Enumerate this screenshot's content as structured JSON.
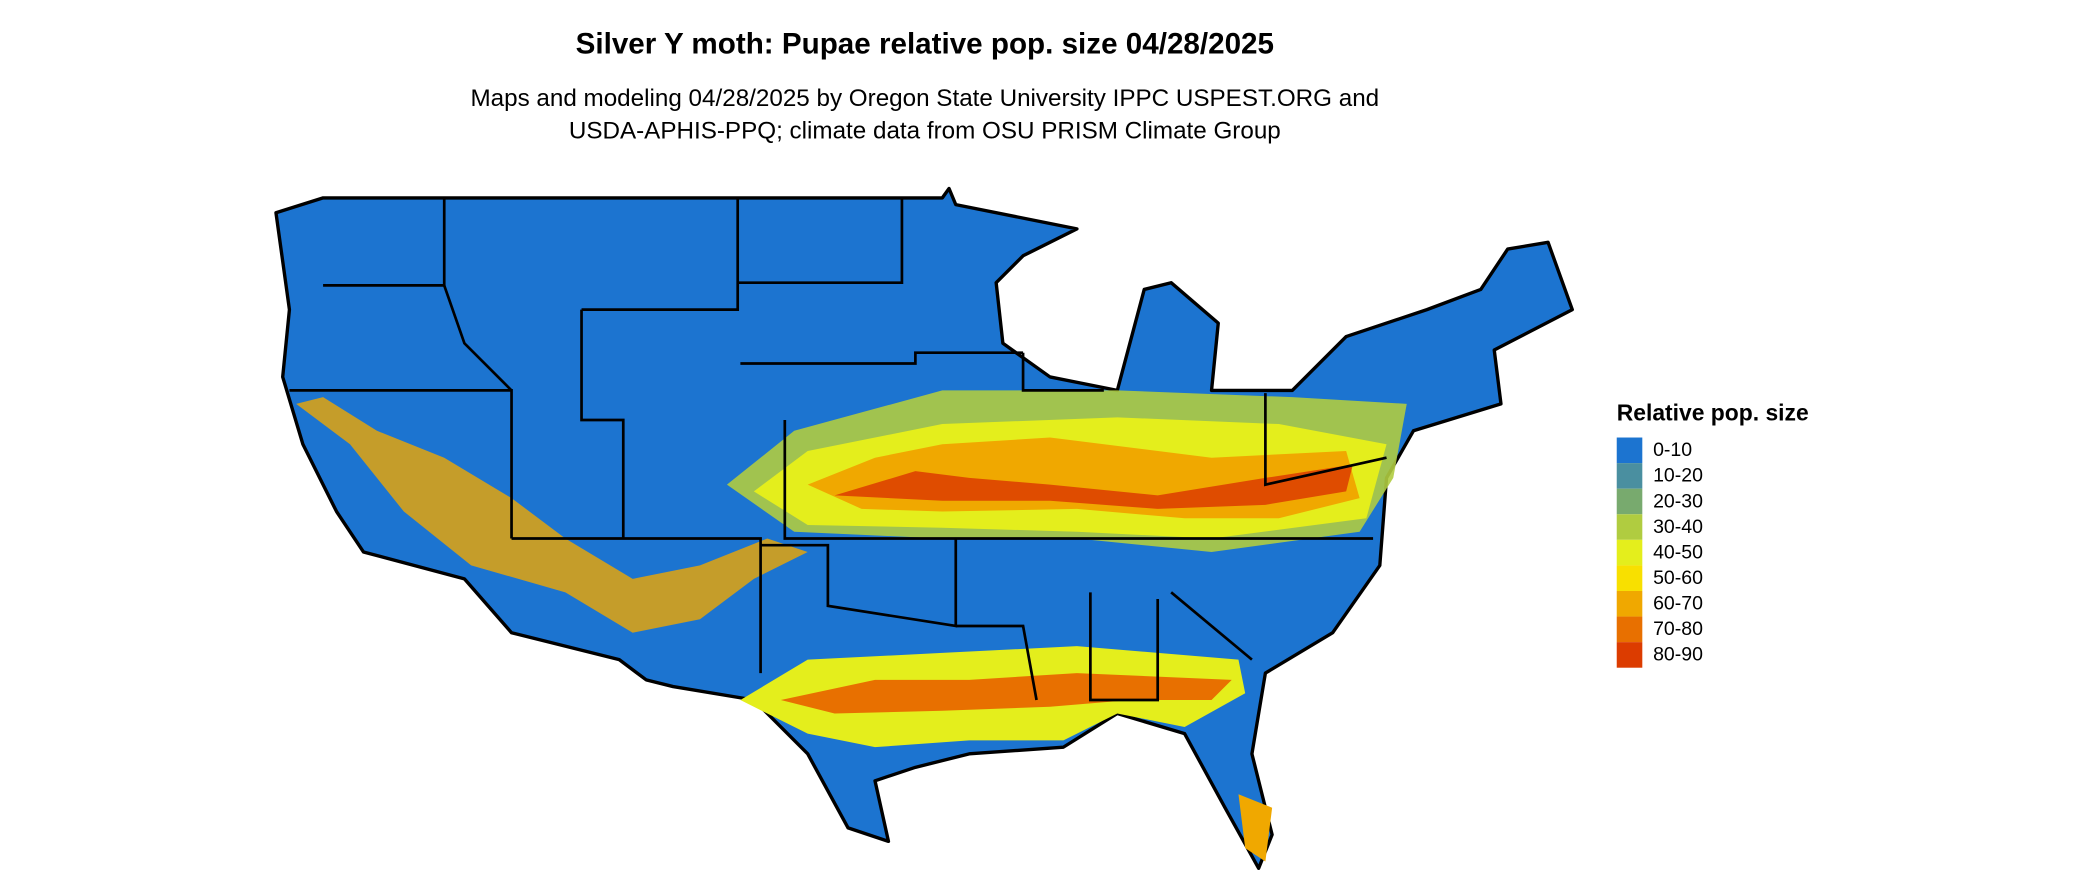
{
  "title": "Silver Y moth: Pupae relative pop. size 04/28/2025",
  "subtitle": [
    "Maps and modeling 04/28/2025 by Oregon State University IPPC USPEST.ORG and",
    "USDA-APHIS-PPQ; climate data from OSU PRISM Climate Group"
  ],
  "legend": {
    "title": "Relative pop. size",
    "items": [
      {
        "label": "0-10",
        "color": "#1c74d0"
      },
      {
        "label": "10-20",
        "color": "#4a8fa0"
      },
      {
        "label": "20-30",
        "color": "#78aa6e"
      },
      {
        "label": "30-40",
        "color": "#b0cc40"
      },
      {
        "label": "40-50",
        "color": "#e4ee1c"
      },
      {
        "label": "50-60",
        "color": "#f8e000"
      },
      {
        "label": "60-70",
        "color": "#f0a800"
      },
      {
        "label": "70-80",
        "color": "#e87000"
      },
      {
        "label": "80-90",
        "color": "#dc3c00"
      }
    ]
  }
}
